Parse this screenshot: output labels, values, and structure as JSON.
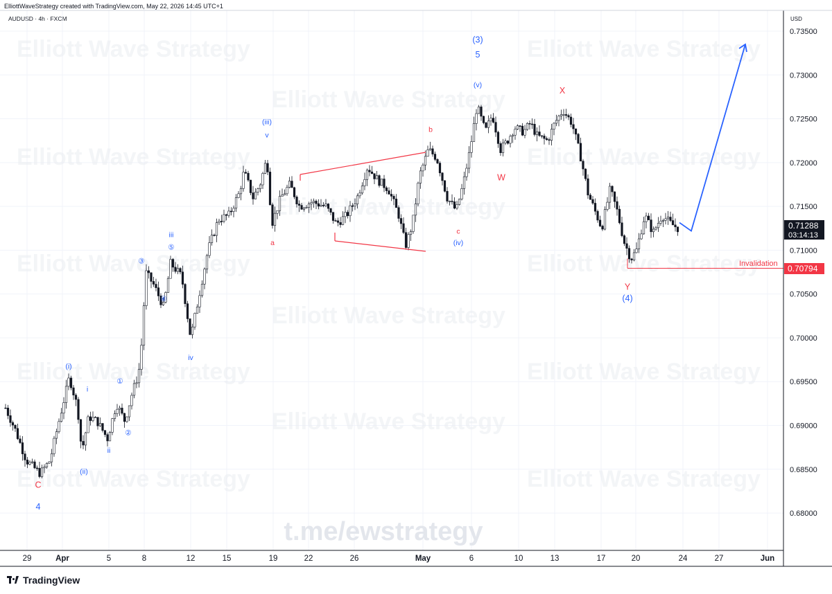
{
  "header": {
    "created_text": "ElliottWaveStrategy created with TradingView.com, May 22, 2026 14:45 UTC+1",
    "symbol_text": "AUDUSD · 4h · FXCM"
  },
  "footer": {
    "brand": "TradingView",
    "logo_icon": "tradingview-logo-icon"
  },
  "watermark": {
    "repeat_text": "Elliott Wave Strategy",
    "center_text": "t.me/ewstrategy"
  },
  "colors": {
    "blue": "#2962ff",
    "red": "#f23645",
    "candle": "#131722",
    "grid": "#f0f3fa"
  },
  "chart_data": {
    "type": "candlestick",
    "currency": "USD",
    "ylim": [
      0.675,
      0.7375
    ],
    "y_ticks": [
      "0.73500",
      "0.73000",
      "0.72500",
      "0.72000",
      "0.71500",
      "0.71000",
      "0.70500",
      "0.70000",
      "0.69500",
      "0.69000",
      "0.68500",
      "0.68000"
    ],
    "x_ticks": [
      "29",
      "Apr",
      "5",
      "8",
      "12",
      "15",
      "19",
      "22",
      "26",
      "May",
      "6",
      "10",
      "13",
      "17",
      "20",
      "24",
      "27",
      "Jun"
    ],
    "last_price": "0.71288",
    "countdown": "03:14:13",
    "invalidation": {
      "label": "Invalidation",
      "price": "0.70794"
    },
    "projection_target": 0.7335,
    "wave_labels": [
      {
        "text": "C",
        "color": "red",
        "price": 0.6832
      },
      {
        "text": "4",
        "color": "blue",
        "price": 0.6807
      },
      {
        "text": "(i)",
        "color": "blue",
        "price": 0.6968
      },
      {
        "text": "i",
        "color": "blue",
        "price": 0.6942
      },
      {
        "text": "(ii)",
        "color": "blue",
        "price": 0.6848
      },
      {
        "text": "ii",
        "color": "blue",
        "price": 0.6872
      },
      {
        "text": "①",
        "color": "blue",
        "price": 0.6951
      },
      {
        "text": "②",
        "color": "blue",
        "price": 0.6892
      },
      {
        "text": "③",
        "color": "blue",
        "price": 0.7088
      },
      {
        "text": "④",
        "color": "blue",
        "price": 0.7045
      },
      {
        "text": "iii",
        "color": "blue",
        "price": 0.7118
      },
      {
        "text": "⑤",
        "color": "blue",
        "price": 0.7104
      },
      {
        "text": "iv",
        "color": "blue",
        "price": 0.6978
      },
      {
        "text": "(iii)",
        "color": "blue",
        "price": 0.7247
      },
      {
        "text": "v",
        "color": "blue",
        "price": 0.7232
      },
      {
        "text": "a",
        "color": "red",
        "price": 0.7109
      },
      {
        "text": "b",
        "color": "red",
        "price": 0.7238
      },
      {
        "text": "c",
        "color": "red",
        "price": 0.7122
      },
      {
        "text": "(iv)",
        "color": "blue",
        "price": 0.7109
      },
      {
        "text": "(3)",
        "color": "blue",
        "price": 0.734
      },
      {
        "text": "5",
        "color": "blue",
        "price": 0.7323
      },
      {
        "text": "(v)",
        "color": "blue",
        "price": 0.7289
      },
      {
        "text": "W",
        "color": "red",
        "price": 0.7183
      },
      {
        "text": "X",
        "color": "red",
        "price": 0.7282
      },
      {
        "text": "Y",
        "color": "red",
        "price": 0.7058
      },
      {
        "text": "(4)",
        "color": "blue",
        "price": 0.7045
      }
    ]
  }
}
